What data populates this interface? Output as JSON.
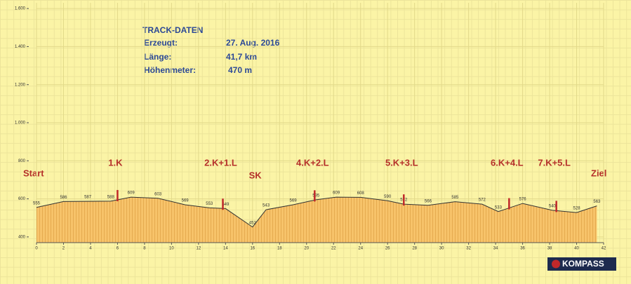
{
  "chart_data": {
    "type": "area",
    "info": {
      "title": "TRACK-DATEN",
      "rows": [
        [
          "Erzeugt:",
          "27. Aug. 2016"
        ],
        [
          "Länge:",
          "41,7 km"
        ],
        [
          "Höhenmeter:",
          "470 m"
        ]
      ]
    },
    "start_label": "Start",
    "end_label": "Ziel",
    "x": [
      0,
      2,
      3.8,
      5.5,
      7,
      9,
      11,
      12.8,
      14,
      16,
      17,
      19,
      20.7,
      22.2,
      24,
      26,
      27.2,
      29,
      31,
      33,
      34.2,
      36,
      38.2,
      40,
      41.5
    ],
    "values": [
      555,
      586,
      587,
      588,
      609,
      603,
      569,
      553,
      549,
      452,
      543,
      569,
      595,
      609,
      608,
      590,
      572,
      566,
      585,
      572,
      533,
      576,
      540,
      528,
      563
    ],
    "color": "#f7c36a",
    "line_color": "#333333",
    "markers": [
      {
        "label": "1.K",
        "x": 6
      },
      {
        "label": "2.K+1.L",
        "x": 13.8
      },
      {
        "label": "4.K+2.L",
        "x": 20.6
      },
      {
        "label": "5.K+3.L",
        "x": 27.2
      },
      {
        "label": "6.K+4.L",
        "x": 35
      },
      {
        "label": "7.K+5.L",
        "x": 38.5
      }
    ],
    "section_labels": [
      {
        "label": "SK",
        "x": 16.2
      }
    ],
    "marker_color": "#c0282a",
    "xlim": [
      0,
      42
    ],
    "xticks": [
      0,
      2,
      4,
      6,
      8,
      10,
      12,
      14,
      16,
      18,
      20,
      22,
      24,
      26,
      28,
      30,
      32,
      34,
      36,
      38,
      40,
      42
    ],
    "ylim": [
      370,
      1630
    ],
    "yticks": [
      400,
      600,
      800,
      {
        "value": 1000,
        "label": "1.000"
      },
      {
        "value": 1200,
        "label": "1.200"
      },
      {
        "value": 1400,
        "label": "1.400"
      },
      {
        "value": 1600,
        "label": "1.600"
      }
    ],
    "grid": true,
    "logo": "KOMPASS"
  }
}
